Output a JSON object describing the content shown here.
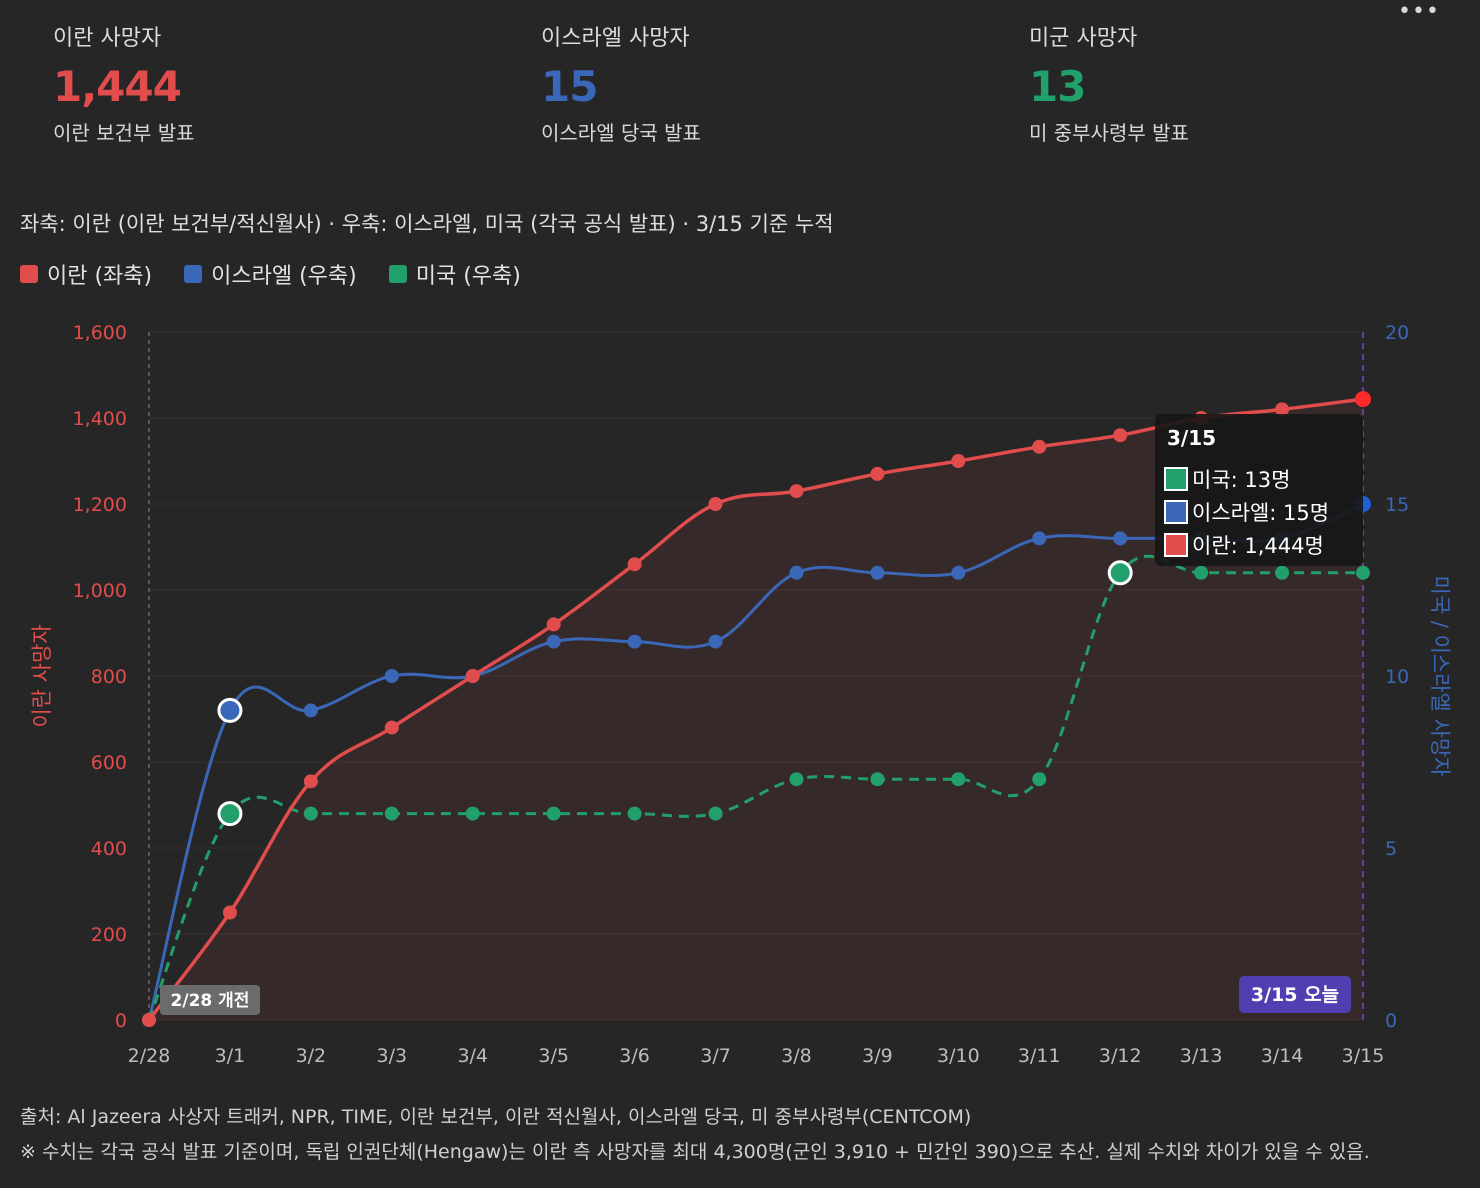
{
  "stats": [
    {
      "label": "이란 사망자",
      "value": "1,444",
      "note": "이란 보건부 발표",
      "color": "#e14c4c"
    },
    {
      "label": "이스라엘 사망자",
      "value": "15",
      "note": "이스라엘 당국 발표",
      "color": "#3a67b8"
    },
    {
      "label": "미군 사망자",
      "value": "13",
      "note": "미 중부사령부 발표",
      "color": "#22a06b"
    }
  ],
  "more_menu": "•••",
  "subtitle": "좌축: 이란 (이란 보건부/적신월사) · 우축: 이스라엘, 미국 (각국 공식 발표) · 3/15 기준 누적",
  "legend": [
    {
      "label": "이란 (좌축)",
      "color": "#e14c4c"
    },
    {
      "label": "이스라엘 (우축)",
      "color": "#3a67b8"
    },
    {
      "label": "미국 (우축)",
      "color": "#22a06b"
    }
  ],
  "chart_data": {
    "type": "line",
    "categories": [
      "2/28",
      "3/1",
      "3/2",
      "3/3",
      "3/4",
      "3/5",
      "3/6",
      "3/7",
      "3/8",
      "3/9",
      "3/10",
      "3/11",
      "3/12",
      "3/13",
      "3/14",
      "3/15"
    ],
    "series": [
      {
        "name": "이란 (좌축)",
        "axis": "left",
        "color": "#e14c4c",
        "style": "solid",
        "area": true,
        "values": [
          0,
          250,
          555,
          680,
          800,
          920,
          1060,
          1200,
          1230,
          1270,
          1300,
          1333,
          1360,
          1400,
          1420,
          1444
        ]
      },
      {
        "name": "이스라엘 (우축)",
        "axis": "right",
        "color": "#3a67b8",
        "style": "solid",
        "values": [
          0,
          9,
          9,
          10,
          10,
          11,
          11,
          11,
          13,
          13,
          13,
          14,
          14,
          14,
          14,
          15
        ]
      },
      {
        "name": "미국 (우축)",
        "axis": "right",
        "color": "#22a06b",
        "style": "dashed",
        "values": [
          0,
          6,
          6,
          6,
          6,
          6,
          6,
          6,
          7,
          7,
          7,
          7,
          13,
          13,
          13,
          13
        ]
      }
    ],
    "ylabel": "이란 사망자",
    "y2label": "미국 / 이스라엘 사망자",
    "ylim": [
      0,
      1600
    ],
    "y2lim": [
      0,
      20
    ],
    "yticks": [
      "0",
      "200",
      "400",
      "600",
      "800",
      "1,000",
      "1,200",
      "1,400",
      "1,600"
    ],
    "y2ticks": [
      "0",
      "5",
      "10",
      "15",
      "20"
    ],
    "annotations": {
      "start": "2/28 개전",
      "end": "3/15 오늘"
    },
    "grid": true
  },
  "tooltip": {
    "title": "3/15",
    "rows": [
      {
        "text": "미국: 13명",
        "color": "#22a06b"
      },
      {
        "text": "이스라엘: 15명",
        "color": "#3a67b8"
      },
      {
        "text": "이란: 1,444명",
        "color": "#e14c4c"
      }
    ]
  },
  "footer": {
    "source": "출처: Al Jazeera 사상자 트래커, NPR, TIME, 이란 보건부, 이란 적신월사, 이스라엘 당국, 미 중부사령부(CENTCOM)",
    "note": "※ 수치는 각국 공식 발표 기준이며, 독립 인권단체(Hengaw)는 이란 측 사망자를 최대 4,300명(군인 3,910 + 민간인 390)으로 추산. 실제 수치와 차이가 있을 수 있음."
  }
}
